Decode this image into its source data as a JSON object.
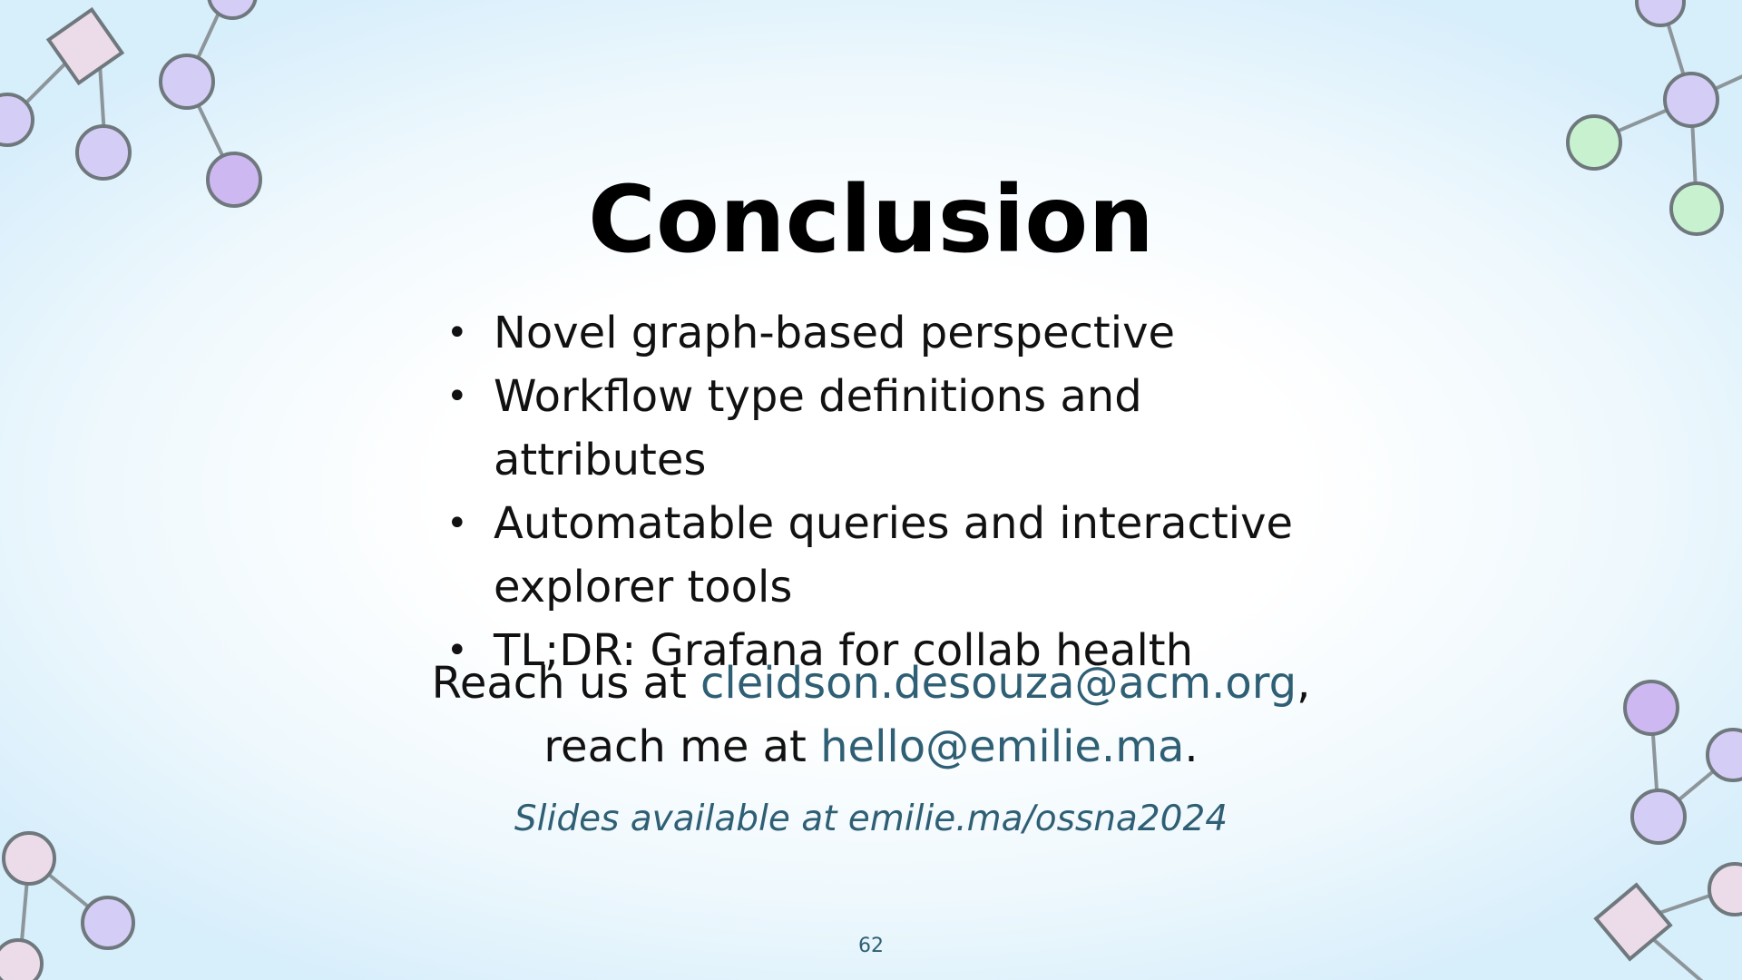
{
  "slide": {
    "title": "Conclusion",
    "bullets": [
      "Novel graph-based perspective",
      "Workflow type definitions and attributes",
      "Automatable queries and interactive explorer tools",
      "TL;DR: Grafana for collab health"
    ],
    "contact": {
      "line1_prefix": "Reach us at ",
      "line1_email": "cleidson.desouza@acm.org",
      "line1_suffix": ",",
      "line2_prefix": "reach me at ",
      "line2_email": "hello@emilie.ma",
      "line2_suffix": "."
    },
    "slides_note": "Slides available at emilie.ma/ossna2024",
    "page_number": "62"
  },
  "colors": {
    "link": "#2f5f74",
    "node_purple": "#d4cdf6",
    "node_purple_dark": "#cdb8f2",
    "node_green": "#c8f2cf",
    "node_pink": "#ecdcea"
  },
  "icons": [
    "graph-node-icon",
    "graph-edge-icon"
  ]
}
